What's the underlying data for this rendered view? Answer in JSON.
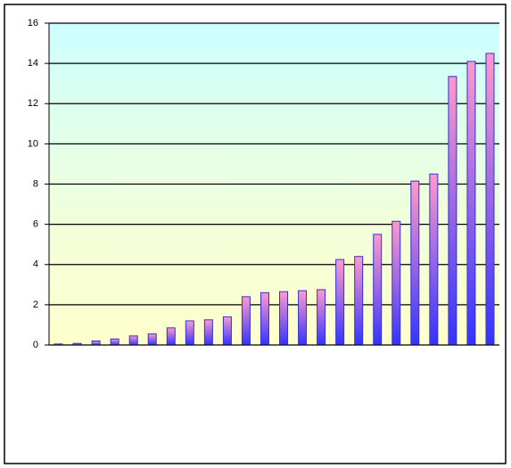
{
  "chart_data": {
    "type": "bar",
    "categories": [
      null,
      null,
      null,
      null,
      null,
      null,
      null,
      null,
      null,
      null,
      null,
      null,
      null,
      null,
      null,
      null,
      null,
      null,
      null,
      null,
      null,
      null,
      null,
      null
    ],
    "values": [
      0.05,
      0.08,
      0.2,
      0.3,
      0.45,
      0.55,
      0.85,
      1.2,
      1.25,
      1.4,
      2.4,
      2.6,
      2.65,
      2.7,
      2.75,
      4.25,
      4.4,
      5.5,
      6.15,
      8.15,
      8.5,
      13.35,
      14.1,
      14.5
    ],
    "color": "#ff99cc",
    "ylim": [
      0,
      16
    ],
    "yticks": [
      0,
      2,
      4,
      6,
      8,
      10,
      12,
      14,
      16
    ],
    "grid": true
  }
}
